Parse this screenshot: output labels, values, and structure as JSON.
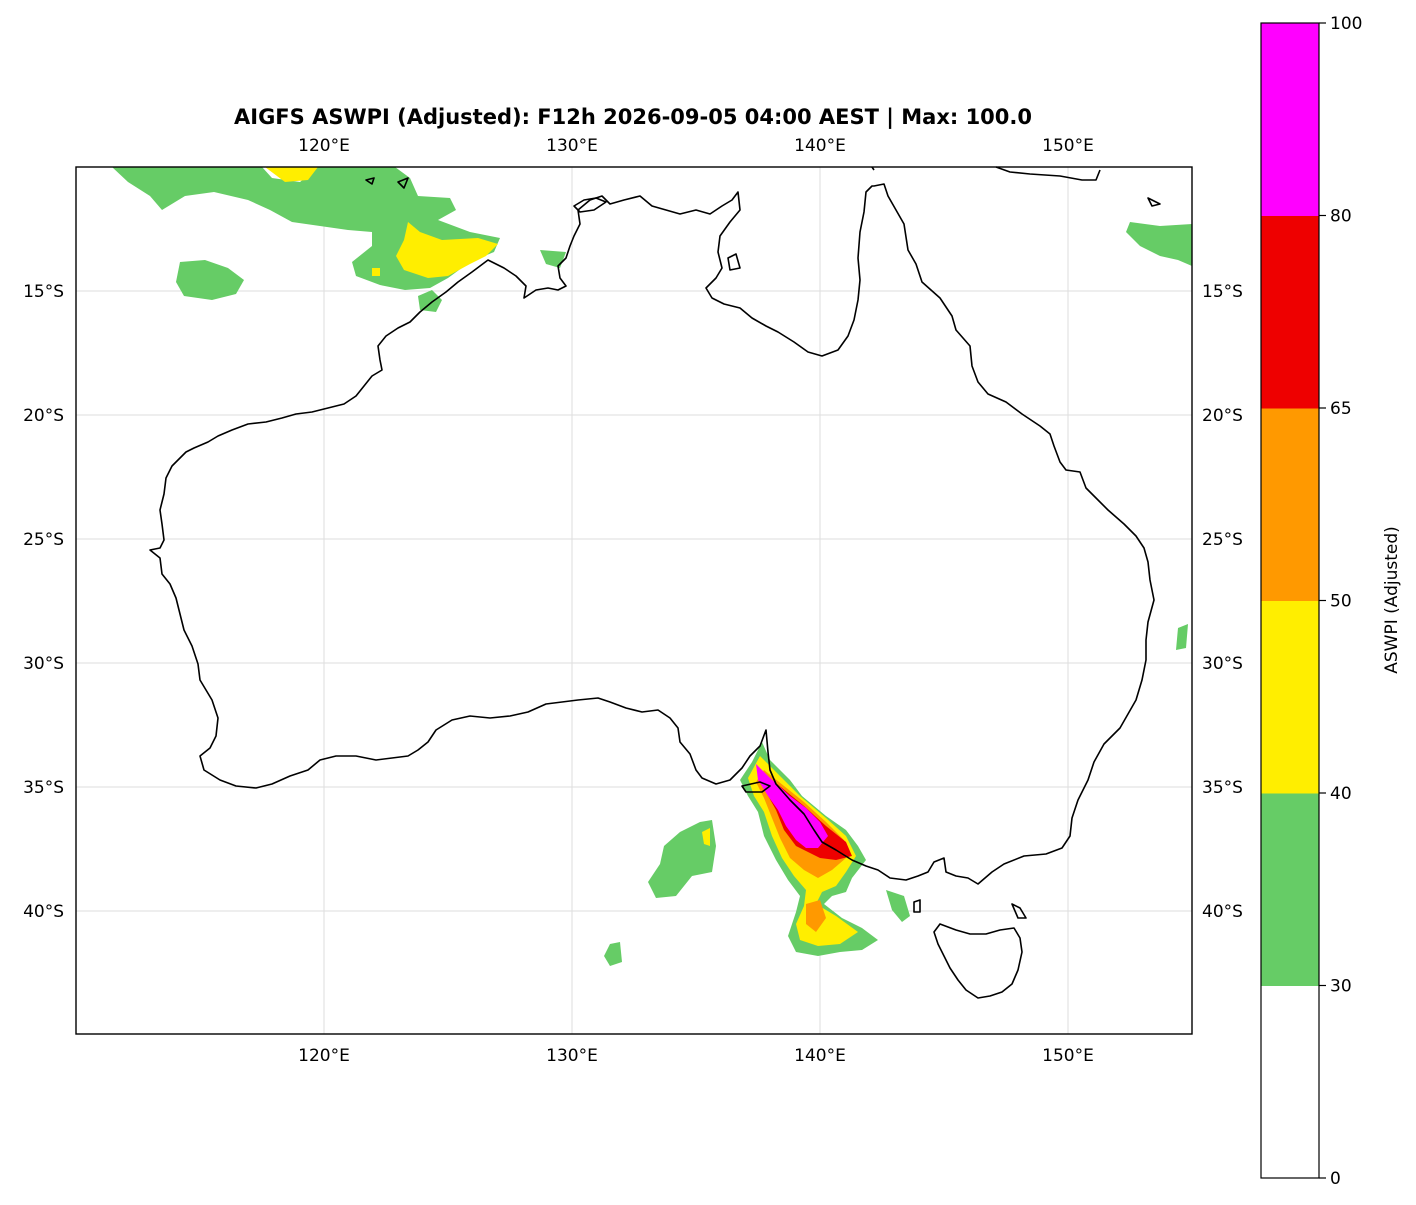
{
  "title": "AIGFS ASWPI (Adjusted): F12h 2026-09-05 04:00 AEST | Max: 100.0",
  "map": {
    "lon_ticks": [
      "120°E",
      "130°E",
      "140°E",
      "150°E"
    ],
    "lat_ticks": [
      "15°S",
      "20°S",
      "25°S",
      "30°S",
      "35°S",
      "40°S"
    ],
    "lon_range": [
      110,
      155
    ],
    "lat_range": [
      -10,
      -45
    ]
  },
  "colorbar": {
    "label": "ASWPI (Adjusted)",
    "levels": [
      0,
      30,
      40,
      50,
      65,
      80,
      100
    ],
    "level_labels": [
      "0",
      "30",
      "40",
      "50",
      "65",
      "80",
      "100"
    ],
    "colors": [
      "#ffffff",
      "#66cc66",
      "#ffee00",
      "#ff9900",
      "#ee0000",
      "#ff00ff"
    ]
  }
}
